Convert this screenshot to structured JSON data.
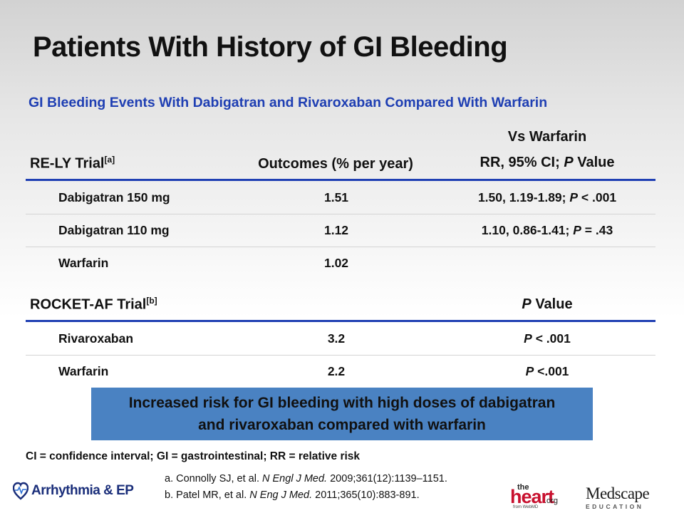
{
  "title": "Patients With History of GI Bleeding",
  "subtitle": "GI Bleeding Events With Dabigatran and Rivaroxaban Compared With Warfarin",
  "rely": {
    "label": "RE-LY Trial",
    "ref": "[a]",
    "col_outcomes": "Outcomes (% per year)",
    "col_vs_line1": "Vs Warfarin",
    "col_vs_line2_pre": "RR, 95% CI; ",
    "col_vs_line2_p": "P",
    "col_vs_line2_post": " Value",
    "rows": [
      {
        "name": "Dabigatran 150 mg",
        "outcome": "1.51",
        "rr_text": "1.50, 1.19-1.89; ",
        "p_label": "P",
        "p_text": " < .001"
      },
      {
        "name": "Dabigatran 110 mg",
        "outcome": "1.12",
        "rr_text": "1.10, 0.86-1.41; ",
        "p_label": "P",
        "p_text": " = .43"
      },
      {
        "name": "Warfarin",
        "outcome": "1.02",
        "rr_text": "",
        "p_label": "",
        "p_text": ""
      }
    ]
  },
  "rocket": {
    "label": "ROCKET-AF Trial",
    "ref": "[b]",
    "col_p": "P",
    "col_p_post": " Value",
    "rows": [
      {
        "name": "Rivaroxaban",
        "outcome": "3.2",
        "p_label": "P",
        "p_text": " < .001"
      },
      {
        "name": "Warfarin",
        "outcome": "2.2",
        "p_label": "P",
        "p_text": " <.001"
      }
    ]
  },
  "callout": {
    "line1": "Increased risk for GI bleeding with high doses of dabigatran",
    "line2": "and rivaroxaban compared with warfarin"
  },
  "abbreviations": "CI = confidence interval; GI = gastrointestinal;  RR = relative risk",
  "references": [
    {
      "pre": "a. Connolly SJ, et al. ",
      "journal": "N Engl J Med.",
      "post": " 2009;361(12):1139–1151."
    },
    {
      "pre": "b. Patel MR, et al. ",
      "journal": "N Eng J Med.",
      "post": " 2011;365(10):883-891."
    }
  ],
  "logos": {
    "arrhythmia": "Arrhythmia & EP",
    "heart_the": "the",
    "heart_main": "heart",
    "heart_org": ".org",
    "heart_from": "from WebMD",
    "medscape": "Medscape",
    "medscape_sub": "EDUCATION"
  }
}
